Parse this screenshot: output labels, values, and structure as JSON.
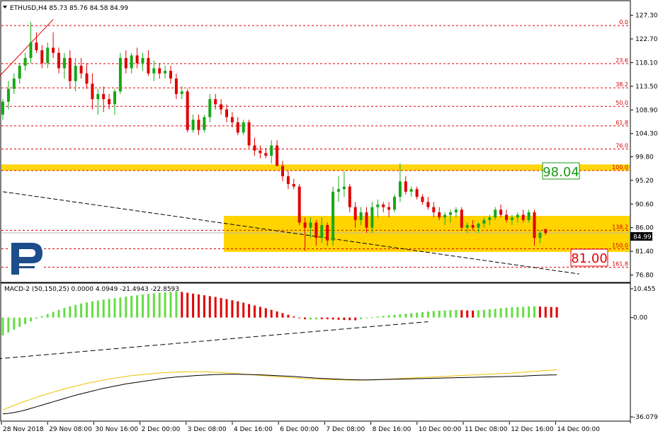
{
  "main_header": {
    "text": "ETHUSD,H4  85.73 85.76 84.58 84.99"
  },
  "macd_header": {
    "text": "MACD-2 (50,150,25) 0.0000 4.0949 -21.4943 -22.8593"
  },
  "price_tag": {
    "text": "84.99"
  },
  "callout_upper": {
    "text": "98.04"
  },
  "callout_lower": {
    "text": "81.00"
  },
  "x_labels": [
    "28 Nov 2018",
    "29 Nov 08:00",
    "30 Nov 16:00",
    "2 Dec 00:00",
    "3 Dec 08:00",
    "4 Dec 16:00",
    "6 Dec 00:00",
    "7 Dec 08:00",
    "8 Dec 16:00",
    "10 Dec 00:00",
    "11 Dec 08:00",
    "12 Dec 16:00",
    "14 Dec 00:00"
  ],
  "colors": {
    "bull": "#17a817",
    "bear": "#e00000",
    "fib": "#e00000",
    "zone": "#ffd400",
    "callout_green": "#1a9a1a",
    "callout_red": "#e00000",
    "histo_pos_up": "#66dd44",
    "histo_pos_down": "#e00000",
    "signal": "#f0c000",
    "logo": "#1d4d8c"
  },
  "chart_data": [
    {
      "type": "candlestick",
      "title": "ETHUSD,H4",
      "y_ticks": [
        "127.30",
        "122.70",
        "118.10",
        "113.50",
        "108.90",
        "104.30",
        "99.80",
        "95.20",
        "90.60",
        "86.00",
        "81.40",
        "76.80"
      ],
      "ylim": [
        75.5,
        130
      ],
      "fib_levels": [
        {
          "label": "0.0",
          "price": 125.3
        },
        {
          "label": "23.6",
          "price": 117.9
        },
        {
          "label": "38.2",
          "price": 113.2
        },
        {
          "label": "50.0",
          "price": 109.6
        },
        {
          "label": "61.8",
          "price": 105.8
        },
        {
          "label": "76.0",
          "price": 101.3
        },
        {
          "label": "100.0",
          "price": 97.1
        },
        {
          "label": "138.2",
          "price": 85.5
        },
        {
          "label": "150.0",
          "price": 81.9
        },
        {
          "label": "161.8",
          "price": 78.3
        }
      ],
      "zones": [
        {
          "from": 97.1,
          "to": 98.3
        },
        {
          "from": 81.3,
          "to": 88.3
        }
      ],
      "candles": [
        {
          "o": 108.0,
          "h": 111.0,
          "l": 107.0,
          "c": 110.5
        },
        {
          "o": 110.5,
          "h": 114.5,
          "l": 109.0,
          "c": 113.0
        },
        {
          "o": 113.0,
          "h": 116.0,
          "l": 112.0,
          "c": 115.0
        },
        {
          "o": 115.0,
          "h": 118.0,
          "l": 114.0,
          "c": 117.5
        },
        {
          "o": 117.5,
          "h": 120.0,
          "l": 116.5,
          "c": 119.0
        },
        {
          "o": 119.0,
          "h": 126.0,
          "l": 118.0,
          "c": 122.0
        },
        {
          "o": 122.0,
          "h": 124.0,
          "l": 120.0,
          "c": 120.5
        },
        {
          "o": 120.5,
          "h": 121.5,
          "l": 117.0,
          "c": 118.0
        },
        {
          "o": 118.0,
          "h": 122.0,
          "l": 117.0,
          "c": 121.0
        },
        {
          "o": 121.0,
          "h": 124.0,
          "l": 119.0,
          "c": 120.0
        },
        {
          "o": 120.0,
          "h": 121.0,
          "l": 116.0,
          "c": 117.0
        },
        {
          "o": 117.0,
          "h": 120.0,
          "l": 115.0,
          "c": 119.0
        },
        {
          "o": 119.0,
          "h": 120.5,
          "l": 113.0,
          "c": 114.5
        },
        {
          "o": 114.5,
          "h": 119.0,
          "l": 112.5,
          "c": 117.5
        },
        {
          "o": 117.5,
          "h": 119.0,
          "l": 115.0,
          "c": 116.0
        },
        {
          "o": 116.0,
          "h": 118.0,
          "l": 113.0,
          "c": 114.0
        },
        {
          "o": 114.0,
          "h": 116.0,
          "l": 109.0,
          "c": 111.0
        },
        {
          "o": 111.0,
          "h": 113.0,
          "l": 108.0,
          "c": 112.0
        },
        {
          "o": 112.0,
          "h": 113.5,
          "l": 108.5,
          "c": 111.0
        },
        {
          "o": 111.0,
          "h": 112.0,
          "l": 109.0,
          "c": 110.0
        },
        {
          "o": 110.0,
          "h": 113.0,
          "l": 108.0,
          "c": 112.5
        },
        {
          "o": 112.5,
          "h": 120.0,
          "l": 112.0,
          "c": 119.0
        },
        {
          "o": 119.0,
          "h": 120.5,
          "l": 116.0,
          "c": 117.0
        },
        {
          "o": 117.0,
          "h": 120.0,
          "l": 116.0,
          "c": 119.5
        },
        {
          "o": 119.5,
          "h": 121.0,
          "l": 117.0,
          "c": 118.0
        },
        {
          "o": 118.0,
          "h": 120.0,
          "l": 116.5,
          "c": 119.0
        },
        {
          "o": 119.0,
          "h": 120.5,
          "l": 115.5,
          "c": 116.0
        },
        {
          "o": 116.0,
          "h": 118.5,
          "l": 114.5,
          "c": 117.0
        },
        {
          "o": 117.0,
          "h": 118.0,
          "l": 115.0,
          "c": 116.0
        },
        {
          "o": 116.0,
          "h": 117.5,
          "l": 115.0,
          "c": 116.5
        },
        {
          "o": 116.5,
          "h": 117.5,
          "l": 114.0,
          "c": 115.0
        },
        {
          "o": 115.0,
          "h": 116.0,
          "l": 111.0,
          "c": 112.0
        },
        {
          "o": 112.0,
          "h": 113.5,
          "l": 111.0,
          "c": 112.5
        },
        {
          "o": 112.5,
          "h": 113.0,
          "l": 104.5,
          "c": 105.0
        },
        {
          "o": 105.0,
          "h": 108.0,
          "l": 104.5,
          "c": 107.0
        },
        {
          "o": 107.0,
          "h": 108.0,
          "l": 104.0,
          "c": 105.0
        },
        {
          "o": 105.0,
          "h": 108.0,
          "l": 104.5,
          "c": 107.5
        },
        {
          "o": 107.5,
          "h": 112.0,
          "l": 106.5,
          "c": 111.0
        },
        {
          "o": 111.0,
          "h": 112.0,
          "l": 109.0,
          "c": 110.0
        },
        {
          "o": 110.0,
          "h": 111.0,
          "l": 108.0,
          "c": 109.0
        },
        {
          "o": 109.0,
          "h": 110.0,
          "l": 106.5,
          "c": 107.5
        },
        {
          "o": 107.5,
          "h": 108.5,
          "l": 105.5,
          "c": 106.5
        },
        {
          "o": 106.5,
          "h": 107.5,
          "l": 104.0,
          "c": 104.5
        },
        {
          "o": 104.5,
          "h": 107.0,
          "l": 104.0,
          "c": 106.5
        },
        {
          "o": 106.5,
          "h": 107.0,
          "l": 101.5,
          "c": 102.0
        },
        {
          "o": 102.0,
          "h": 103.5,
          "l": 100.0,
          "c": 101.0
        },
        {
          "o": 101.0,
          "h": 102.0,
          "l": 99.5,
          "c": 100.5
        },
        {
          "o": 100.5,
          "h": 101.5,
          "l": 99.5,
          "c": 100.0
        },
        {
          "o": 100.0,
          "h": 103.0,
          "l": 98.5,
          "c": 102.0
        },
        {
          "o": 102.0,
          "h": 103.0,
          "l": 98.0,
          "c": 98.0
        },
        {
          "o": 98.0,
          "h": 99.0,
          "l": 95.0,
          "c": 96.0
        },
        {
          "o": 96.0,
          "h": 97.0,
          "l": 93.5,
          "c": 94.5
        },
        {
          "o": 94.5,
          "h": 95.5,
          "l": 93.5,
          "c": 94.0
        },
        {
          "o": 94.0,
          "h": 94.5,
          "l": 86.5,
          "c": 87.0
        },
        {
          "o": 87.0,
          "h": 88.0,
          "l": 81.5,
          "c": 86.0
        },
        {
          "o": 86.0,
          "h": 88.0,
          "l": 84.0,
          "c": 87.0
        },
        {
          "o": 87.0,
          "h": 87.5,
          "l": 82.5,
          "c": 84.0
        },
        {
          "o": 84.0,
          "h": 88.0,
          "l": 83.0,
          "c": 86.5
        },
        {
          "o": 86.5,
          "h": 87.0,
          "l": 82.5,
          "c": 83.5
        },
        {
          "o": 83.5,
          "h": 94.0,
          "l": 82.5,
          "c": 93.0
        },
        {
          "o": 93.0,
          "h": 96.0,
          "l": 91.0,
          "c": 93.5
        },
        {
          "o": 93.5,
          "h": 97.0,
          "l": 92.0,
          "c": 94.0
        },
        {
          "o": 94.0,
          "h": 94.5,
          "l": 89.0,
          "c": 90.0
        },
        {
          "o": 90.0,
          "h": 91.0,
          "l": 86.0,
          "c": 87.5
        },
        {
          "o": 87.5,
          "h": 90.0,
          "l": 86.5,
          "c": 89.0
        },
        {
          "o": 89.0,
          "h": 90.0,
          "l": 85.0,
          "c": 86.0
        },
        {
          "o": 86.0,
          "h": 91.0,
          "l": 85.0,
          "c": 90.0
        },
        {
          "o": 90.0,
          "h": 91.5,
          "l": 88.0,
          "c": 90.5
        },
        {
          "o": 90.5,
          "h": 91.0,
          "l": 89.0,
          "c": 90.0
        },
        {
          "o": 90.0,
          "h": 91.0,
          "l": 88.0,
          "c": 89.5
        },
        {
          "o": 89.5,
          "h": 92.5,
          "l": 89.0,
          "c": 92.0
        },
        {
          "o": 92.0,
          "h": 98.5,
          "l": 91.0,
          "c": 95.0
        },
        {
          "o": 95.0,
          "h": 96.0,
          "l": 92.5,
          "c": 93.0
        },
        {
          "o": 93.0,
          "h": 94.0,
          "l": 92.0,
          "c": 93.5
        },
        {
          "o": 93.5,
          "h": 94.0,
          "l": 91.5,
          "c": 92.0
        },
        {
          "o": 92.0,
          "h": 92.5,
          "l": 90.5,
          "c": 91.0
        },
        {
          "o": 91.0,
          "h": 92.0,
          "l": 89.5,
          "c": 90.0
        },
        {
          "o": 90.0,
          "h": 91.0,
          "l": 88.0,
          "c": 89.0
        },
        {
          "o": 89.0,
          "h": 90.0,
          "l": 87.5,
          "c": 88.0
        },
        {
          "o": 88.0,
          "h": 89.0,
          "l": 86.5,
          "c": 88.5
        },
        {
          "o": 88.5,
          "h": 89.5,
          "l": 87.0,
          "c": 89.0
        },
        {
          "o": 89.0,
          "h": 90.0,
          "l": 88.0,
          "c": 89.5
        },
        {
          "o": 89.5,
          "h": 90.0,
          "l": 85.5,
          "c": 86.0
        },
        {
          "o": 86.0,
          "h": 87.0,
          "l": 85.0,
          "c": 86.5
        },
        {
          "o": 86.5,
          "h": 87.5,
          "l": 85.5,
          "c": 86.0
        },
        {
          "o": 86.0,
          "h": 87.0,
          "l": 85.0,
          "c": 86.8
        },
        {
          "o": 86.8,
          "h": 88.0,
          "l": 86.0,
          "c": 87.5
        },
        {
          "o": 87.5,
          "h": 88.5,
          "l": 86.5,
          "c": 88.0
        },
        {
          "o": 88.0,
          "h": 90.0,
          "l": 87.5,
          "c": 89.5
        },
        {
          "o": 89.5,
          "h": 90.5,
          "l": 88.0,
          "c": 88.5
        },
        {
          "o": 88.5,
          "h": 89.5,
          "l": 87.0,
          "c": 87.5
        },
        {
          "o": 87.5,
          "h": 88.5,
          "l": 86.5,
          "c": 88.0
        },
        {
          "o": 88.0,
          "h": 89.0,
          "l": 87.0,
          "c": 88.5
        },
        {
          "o": 88.5,
          "h": 89.5,
          "l": 87.0,
          "c": 87.5
        },
        {
          "o": 87.5,
          "h": 89.5,
          "l": 87.0,
          "c": 89.0
        },
        {
          "o": 89.0,
          "h": 89.5,
          "l": 82.5,
          "c": 84.0
        },
        {
          "o": 84.0,
          "h": 85.5,
          "l": 83.0,
          "c": 85.0
        },
        {
          "o": 85.73,
          "h": 85.76,
          "l": 84.58,
          "c": 84.99
        }
      ],
      "trendlines": [
        {
          "style": "dashed",
          "from": [
            0,
            93.0
          ],
          "to": [
            103,
            77.0
          ]
        },
        {
          "style": "solid",
          "color": "red",
          "from": [
            -1,
            115.0
          ],
          "to": [
            9,
            126.5
          ]
        }
      ],
      "current_price": 84.99
    },
    {
      "type": "bar",
      "title": "MACD-2 (50,150,25)",
      "y_ticks": [
        "10.455",
        "0.00",
        "-36.0794"
      ],
      "ylim": [
        -36.0794,
        10.455
      ],
      "histogram": [
        -6.5,
        -5.4,
        -4.4,
        -3.4,
        -2.4,
        -1.4,
        -0.4,
        0.5,
        1.3,
        2.1,
        2.8,
        3.5,
        4.1,
        4.6,
        5.1,
        5.5,
        5.9,
        6.2,
        6.5,
        6.8,
        7.0,
        7.3,
        7.6,
        7.9,
        8.1,
        8.4,
        8.6,
        8.8,
        9.0,
        9.2,
        9.35,
        9.5,
        9.3,
        9.0,
        8.7,
        8.4,
        8.1,
        7.8,
        7.5,
        7.1,
        6.7,
        6.3,
        5.9,
        5.4,
        4.9,
        4.4,
        3.9,
        3.4,
        2.8,
        2.2,
        1.6,
        1.0,
        0.4,
        -0.2,
        -0.6,
        -0.7,
        -0.65,
        -0.6,
        -0.62,
        -0.7,
        -0.8,
        -0.9,
        -0.95,
        -1.0,
        -0.6,
        -0.2,
        0.1,
        0.4,
        0.6,
        0.8,
        1.0,
        1.2,
        1.4,
        1.6,
        1.8,
        2.0,
        2.2,
        2.4,
        2.5,
        2.6,
        2.7,
        2.8,
        2.7,
        2.6,
        2.55,
        2.65,
        2.8,
        3.0,
        3.2,
        3.4,
        3.55,
        3.7,
        3.85,
        3.9,
        4.05,
        4.1,
        4.0,
        3.9,
        3.85,
        3.8
      ],
      "histogram_colors": [
        "g",
        "g",
        "g",
        "g",
        "g",
        "g",
        "g",
        "g",
        "g",
        "g",
        "g",
        "g",
        "g",
        "g",
        "g",
        "g",
        "g",
        "g",
        "g",
        "g",
        "g",
        "g",
        "g",
        "g",
        "g",
        "g",
        "g",
        "g",
        "g",
        "g",
        "g",
        "g",
        "r",
        "r",
        "r",
        "r",
        "r",
        "r",
        "r",
        "r",
        "r",
        "r",
        "r",
        "r",
        "r",
        "r",
        "r",
        "r",
        "r",
        "r",
        "r",
        "r",
        "r",
        "r",
        "r",
        "g",
        "g",
        "r",
        "r",
        "r",
        "r",
        "r",
        "r",
        "r",
        "g",
        "g",
        "g",
        "g",
        "g",
        "g",
        "g",
        "g",
        "g",
        "g",
        "g",
        "g",
        "g",
        "g",
        "g",
        "g",
        "g",
        "g",
        "r",
        "r",
        "r",
        "g",
        "g",
        "g",
        "g",
        "g",
        "g",
        "g",
        "g",
        "g",
        "g",
        "g",
        "r",
        "r",
        "r",
        "r"
      ],
      "signal_line": [
        -33.5,
        -32.7,
        -31.9,
        -31.1,
        -30.4,
        -29.7,
        -29.0,
        -28.3,
        -27.7,
        -27.1,
        -26.5,
        -25.9,
        -25.4,
        -24.9,
        -24.4,
        -23.9,
        -23.5,
        -23.1,
        -22.7,
        -22.3,
        -22.0,
        -21.7,
        -21.4,
        -21.1,
        -20.9,
        -20.7,
        -20.5,
        -20.3,
        -20.15,
        -20.0,
        -19.9,
        -19.8,
        -19.75,
        -19.7,
        -19.65,
        -19.65,
        -19.7,
        -19.75,
        -19.85,
        -19.95,
        -20.1,
        -20.25,
        -20.4,
        -20.55,
        -20.7,
        -20.85,
        -21.0,
        -21.15,
        -21.3,
        -21.45,
        -21.6,
        -21.75,
        -21.9,
        -22.05,
        -22.2,
        -22.3,
        -22.4,
        -22.45,
        -22.5,
        -22.55,
        -22.6,
        -22.65,
        -22.7,
        -22.75,
        -22.75,
        -22.72,
        -22.65,
        -22.55,
        -22.45,
        -22.35,
        -22.25,
        -22.15,
        -22.05,
        -21.95,
        -21.85,
        -21.75,
        -21.65,
        -21.55,
        -21.45,
        -21.35,
        -21.25,
        -21.15,
        -21.05,
        -20.95,
        -20.85,
        -20.75,
        -20.65,
        -20.55,
        -20.45,
        -20.35,
        -20.25,
        -20.15,
        -20.0,
        -19.85,
        -19.7,
        -19.55,
        -19.4,
        -19.25,
        -19.1,
        -18.95
      ],
      "macd_line": [
        -35.0,
        -34.8,
        -34.5,
        -34.1,
        -33.6,
        -33.0,
        -32.4,
        -31.8,
        -31.2,
        -30.6,
        -30.0,
        -29.4,
        -28.8,
        -28.2,
        -27.7,
        -27.2,
        -26.7,
        -26.2,
        -25.7,
        -25.3,
        -24.9,
        -24.5,
        -24.1,
        -23.8,
        -23.5,
        -23.2,
        -22.9,
        -22.6,
        -22.3,
        -22.0,
        -21.8,
        -21.6,
        -21.45,
        -21.3,
        -21.15,
        -21.0,
        -20.9,
        -20.8,
        -20.7,
        -20.65,
        -20.6,
        -20.6,
        -20.6,
        -20.65,
        -20.7,
        -20.75,
        -20.8,
        -20.9,
        -21.0,
        -21.1,
        -21.2,
        -21.3,
        -21.4,
        -21.55,
        -21.7,
        -21.85,
        -22.0,
        -22.1,
        -22.2,
        -22.3,
        -22.4,
        -22.5,
        -22.55,
        -22.6,
        -22.65,
        -22.65,
        -22.6,
        -22.55,
        -22.5,
        -22.45,
        -22.4,
        -22.35,
        -22.3,
        -22.25,
        -22.2,
        -22.15,
        -22.1,
        -22.05,
        -22.0,
        -21.95,
        -21.9,
        -21.85,
        -21.8,
        -21.75,
        -21.7,
        -21.65,
        -21.6,
        -21.55,
        -21.5,
        -21.45,
        -21.4,
        -21.35,
        -21.3,
        -21.25,
        -21.15,
        -21.05,
        -20.95,
        -20.9,
        -20.85,
        -20.8
      ],
      "trendline": {
        "style": "dashed",
        "from": [
          -1,
          -15.0
        ],
        "to": [
          76,
          -1.5
        ]
      }
    }
  ]
}
